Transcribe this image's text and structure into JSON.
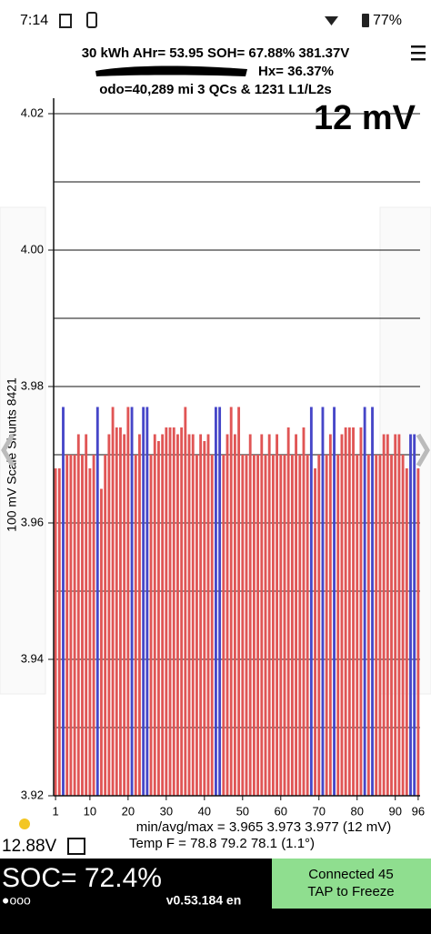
{
  "status_bar": {
    "time": "7:14",
    "battery": "77%"
  },
  "header": {
    "line1": "30 kWh  AHr= 53.95  SOH= 67.88%   381.37V",
    "hx": "Hx= 36.37%",
    "odo": "odo=40,289 mi 3 QCs & 1231 L1/L2s"
  },
  "chart_data": {
    "type": "bar",
    "spread_label": "12 mV",
    "y_label": "100 mV Scale Shunts 8421",
    "x": [
      3.968,
      3.968,
      3.977,
      3.97,
      3.97,
      3.97,
      3.973,
      3.97,
      3.973,
      3.968,
      3.97,
      3.977,
      3.965,
      3.97,
      3.973,
      3.977,
      3.974,
      3.974,
      3.973,
      3.977,
      3.977,
      3.97,
      3.973,
      3.977,
      3.977,
      3.97,
      3.973,
      3.972,
      3.973,
      3.974,
      3.974,
      3.974,
      3.973,
      3.974,
      3.977,
      3.973,
      3.973,
      3.97,
      3.973,
      3.972,
      3.973,
      3.97,
      3.977,
      3.977,
      3.97,
      3.973,
      3.977,
      3.973,
      3.977,
      3.97,
      3.97,
      3.973,
      3.97,
      3.97,
      3.973,
      3.97,
      3.973,
      3.97,
      3.973,
      3.97,
      3.97,
      3.974,
      3.97,
      3.973,
      3.97,
      3.974,
      3.97,
      3.977,
      3.968,
      3.97,
      3.977,
      3.97,
      3.973,
      3.977,
      3.97,
      3.973,
      3.974,
      3.974,
      3.974,
      3.97,
      3.974,
      3.977,
      3.97,
      3.977,
      3.97,
      3.97,
      3.973,
      3.973,
      3.97,
      3.973,
      3.973,
      3.97,
      3.968,
      3.973,
      3.973,
      3.968
    ],
    "color": "#e05555",
    "highlight_color": "#4646c8",
    "highlight": [
      2,
      11,
      20,
      23,
      24,
      42,
      43,
      67,
      70,
      73,
      81,
      83,
      93,
      94
    ],
    "ylim": [
      3.92,
      4.02
    ],
    "yticks": [
      3.92,
      3.94,
      3.96,
      3.98,
      {
        "value": 4.0,
        "label": "4.00"
      },
      4.02
    ],
    "ygrid": [
      3.93,
      3.95,
      3.97,
      3.99,
      4.01
    ],
    "xticks": [
      1,
      10,
      20,
      30,
      40,
      50,
      60,
      70,
      80,
      90,
      96
    ]
  },
  "footer": {
    "stats": "min/avg/max = 3.965 3.973 3.977  (12 mV)",
    "temp": "Temp F = 78.8  79.2  78.1  (1.1°)",
    "aux_voltage": "12.88V",
    "soc": "SOC= 72.4%",
    "dots": "●ooo",
    "version": "v0.53.184 en",
    "connected": "Connected 45",
    "tap": "TAP to Freeze"
  }
}
